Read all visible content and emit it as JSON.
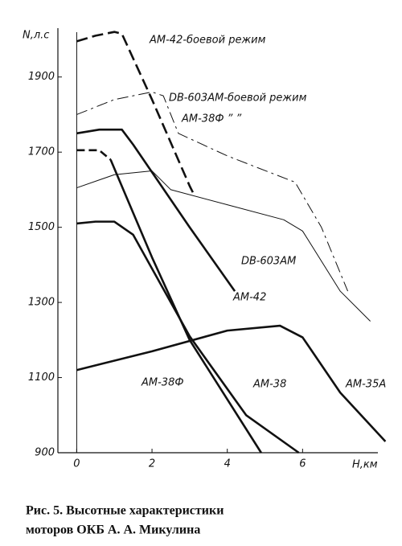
{
  "chart_data": {
    "type": "line",
    "ylabel": "N,л.с",
    "xlabel": "H,км",
    "caption": [
      "Рис. 5. Высотные характеристики",
      "моторов ОКБ А. А. Микулина"
    ],
    "xlim": [
      -0.5,
      8
    ],
    "ylim": [
      900,
      2030
    ],
    "xticks": [
      0,
      2,
      4,
      6
    ],
    "yticks": [
      900,
      1100,
      1300,
      1500,
      1700,
      1900
    ],
    "series": [
      {
        "name": "АМ-42-боевой режим",
        "color": "#111111",
        "width": 2.6,
        "dash": "14 6",
        "x": [
          0,
          0.5,
          1,
          1.2,
          2,
          3,
          3.1
        ],
        "values": [
          1995,
          2010,
          2020,
          2015,
          1840,
          1610,
          1590
        ]
      },
      {
        "name": "DB-603АМ-боевой режим",
        "color": "#111111",
        "width": 1,
        "dash": "14 5 3 5",
        "x": [
          0,
          1,
          2,
          2.3,
          2.7,
          4,
          5.8,
          6.5,
          7.2
        ],
        "values": [
          1800,
          1840,
          1860,
          1850,
          1750,
          1690,
          1620,
          1500,
          1330
        ]
      },
      {
        "name": "АМ-38Ф    ”    ”",
        "color": "#111111",
        "width": 2.6,
        "dash": "10 5",
        "x": [
          0,
          0.6,
          0.9
        ],
        "values": [
          1705,
          1705,
          1680
        ]
      },
      {
        "name": "АМ-42",
        "color": "#111111",
        "width": 2.6,
        "dash": "none",
        "x": [
          0,
          0.6,
          1.2,
          1.5,
          3,
          4.2
        ],
        "values": [
          1750,
          1760,
          1760,
          1720,
          1500,
          1330
        ]
      },
      {
        "name": "DB-603АМ",
        "color": "#111111",
        "width": 1,
        "dash": "none",
        "x": [
          0,
          1,
          2,
          2.5,
          4,
          5.5,
          6,
          7,
          7.8
        ],
        "values": [
          1605,
          1640,
          1650,
          1600,
          1560,
          1520,
          1490,
          1330,
          1250
        ]
      },
      {
        "name": "АМ-38Ф",
        "color": "#111111",
        "width": 2.6,
        "dash": "none",
        "x": [
          0.9,
          2,
          3,
          4.9
        ],
        "values": [
          1680,
          1420,
          1200,
          900
        ]
      },
      {
        "name": "АМ-38",
        "color": "#111111",
        "width": 2.6,
        "dash": "none",
        "x": [
          0,
          0.5,
          1,
          1.5,
          3,
          4.5,
          5.9
        ],
        "values": [
          1510,
          1515,
          1515,
          1480,
          1210,
          1000,
          900
        ]
      },
      {
        "name": "АМ-35А",
        "color": "#111111",
        "width": 2.6,
        "dash": "none",
        "x": [
          0,
          2,
          4,
          5.4,
          6,
          7,
          8.2
        ],
        "values": [
          1120,
          1170,
          1225,
          1238,
          1207,
          1060,
          930
        ]
      }
    ]
  }
}
